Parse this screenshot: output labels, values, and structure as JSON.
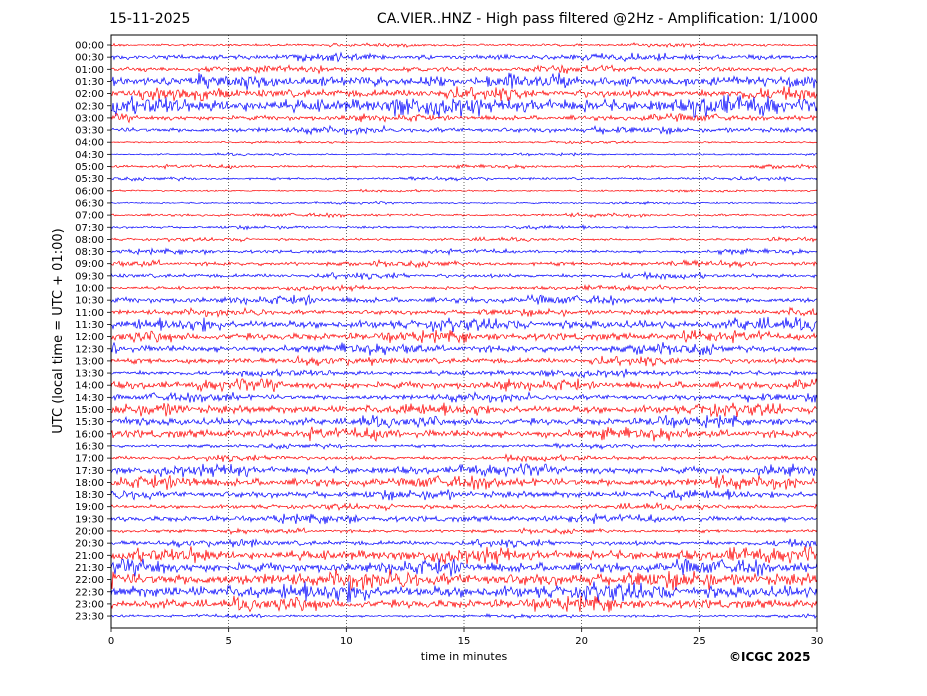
{
  "header": {
    "date": "15-11-2025",
    "title": "CA.VIER..HNZ - High pass filtered @2Hz - Amplification: 1/1000"
  },
  "footer": {
    "copyright": "©ICGC 2025"
  },
  "chart_data": {
    "type": "line",
    "title": "CA.VIER..HNZ - High pass filtered @2Hz - Amplification: 1/1000",
    "xlabel": "time in minutes",
    "ylabel": "UTC (local time = UTC + 01:00)",
    "xlim": [
      0,
      30
    ],
    "xticks": [
      0,
      5,
      10,
      15,
      20,
      25,
      30
    ],
    "vertical_gridlines": [
      5,
      10,
      15,
      20,
      25
    ],
    "grid": "vertical dotted",
    "row_labels": [
      "00:00",
      "00:30",
      "01:00",
      "01:30",
      "02:00",
      "02:30",
      "03:00",
      "03:30",
      "04:00",
      "04:30",
      "05:00",
      "05:30",
      "06:00",
      "06:30",
      "07:00",
      "07:30",
      "08:00",
      "08:30",
      "09:00",
      "09:30",
      "10:00",
      "10:30",
      "11:00",
      "11:30",
      "12:00",
      "12:30",
      "13:00",
      "13:30",
      "14:00",
      "14:30",
      "15:00",
      "15:30",
      "16:00",
      "16:30",
      "17:00",
      "17:30",
      "18:00",
      "18:30",
      "19:00",
      "19:30",
      "20:00",
      "20:30",
      "21:00",
      "21:30",
      "22:00",
      "22:30",
      "23:00",
      "23:30"
    ],
    "trace_colors": [
      "#ff0000",
      "#0000ff"
    ],
    "amplitudes": [
      0.15,
      0.3,
      0.3,
      0.6,
      0.5,
      0.8,
      0.3,
      0.3,
      0.1,
      0.1,
      0.15,
      0.15,
      0.1,
      0.1,
      0.15,
      0.15,
      0.15,
      0.2,
      0.25,
      0.25,
      0.2,
      0.35,
      0.3,
      0.5,
      0.45,
      0.45,
      0.35,
      0.3,
      0.45,
      0.35,
      0.5,
      0.45,
      0.5,
      0.2,
      0.25,
      0.45,
      0.5,
      0.4,
      0.25,
      0.35,
      0.2,
      0.3,
      0.6,
      0.6,
      0.75,
      0.75,
      0.55,
      0.15
    ]
  }
}
